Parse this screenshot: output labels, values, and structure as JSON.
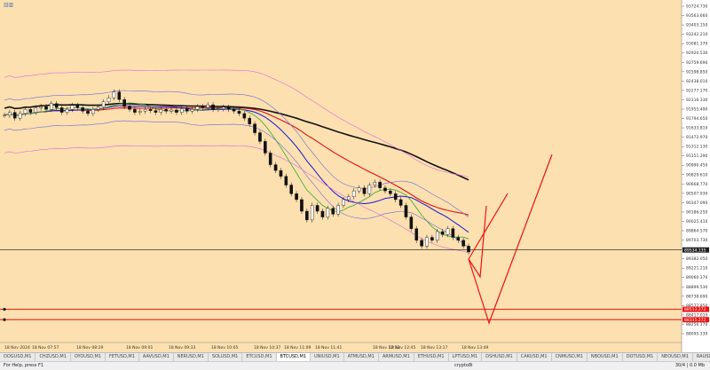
{
  "chart_data": {
    "type": "line",
    "symbol": "BTCUSD,M1",
    "y_axis_labels": [
      "93724.730",
      "93563.660",
      "93403.150",
      "93242.210",
      "93081.370",
      "92920.530",
      "92759.690",
      "92598.850",
      "92438.010",
      "92277.170",
      "92116.330",
      "91955.490",
      "91794.650",
      "91633.810",
      "91472.970",
      "91312.130",
      "91151.290",
      "90990.450",
      "90829.610",
      "90668.770",
      "90507.930",
      "90347.090",
      "90186.250",
      "90025.410",
      "89864.570",
      "89703.730",
      "89542.890",
      "89382.050",
      "89221.210",
      "89060.370",
      "88899.530",
      "88738.690",
      "88577.850",
      "88417.010",
      "88256.170",
      "88095.330"
    ],
    "current_price_label": "89534.135",
    "level_labels": [
      "88513.272",
      "88335.272"
    ],
    "x_axis_labels": [
      "18 Nov 2024",
      "18 Nov 07:57",
      "18 Nov 08:29",
      "18 Nov 09:01",
      "18 Nov 09:33",
      "18 Nov 10:05",
      "18 Nov 10:37",
      "18 Nov 11:09",
      "18 Nov 11:41",
      "18 Nov 12:13",
      "18 Nov 12:45",
      "18 Nov 13:17",
      "18 Nov 13:49"
    ],
    "ylim": [
      88095.33,
      93724.73
    ],
    "price_path": [
      91850,
      91900,
      91800,
      91880,
      91950,
      91900,
      91980,
      92000,
      91950,
      92050,
      91980,
      91900,
      91950,
      92020,
      91980,
      91920,
      91880,
      91950,
      91990,
      92080,
      92150,
      92250,
      92120,
      92000,
      91950,
      91900,
      91920,
      91950,
      91930,
      91900,
      91950,
      91920,
      91940,
      91900,
      91960,
      91920,
      91950,
      92000,
      91980,
      92030,
      91950,
      91960,
      91990,
      91950,
      91920,
      91880,
      91800,
      91700,
      91550,
      91400,
      91200,
      91000,
      90900,
      90800,
      90650,
      90500,
      90400,
      90200,
      90050,
      90300,
      90200,
      90100,
      90250,
      90150,
      90300,
      90400,
      90450,
      90550,
      90600,
      90500,
      90650,
      90700,
      90600,
      90550,
      90500,
      90400,
      90300,
      90100,
      89900,
      89700,
      89600,
      89750,
      89700,
      89850,
      89800,
      89900,
      89750,
      89700,
      89600,
      89500
    ],
    "indicators": {
      "colors": {
        "ma_fast": "#2fa82f",
        "ma_mid": "#1515d8",
        "ma_slow": "#e01010",
        "ma_long": "#111111",
        "bands_outer": "#dd66dd",
        "bands_inner": "#6a6ad8",
        "forecast": "#ee1111",
        "hline": "#111111",
        "level_line": "#ee1111"
      }
    }
  },
  "window": {
    "icon_label": "▥▥"
  },
  "tabs": [
    "DOGUSD,M1",
    "CHZUSD,M1",
    "OYOUSD,M1",
    "FETUSD,M1",
    "AAVUSD,M1",
    "NERUSD,M1",
    "SOLUSD,M1",
    "ETCUSD,M1",
    "BTCUSD,M1",
    "UNIUSD,M1",
    "ATMUSD,M1",
    "ARMUSD,M1",
    "ETHUSD,M1",
    "LPTUSD,M1",
    "DSHUSD,M1",
    "CAKUSD,M1",
    "CNMUSD,M1",
    "NBOUSD,M1",
    "DOTUSD,M1",
    "NEOUSD,M1",
    "RAUSD,M1"
  ],
  "active_tab_index": 8,
  "status": {
    "help": "For Help, press F1",
    "profile": "crypto8i",
    "traffic": "30/4 | 0.0 Mb"
  }
}
